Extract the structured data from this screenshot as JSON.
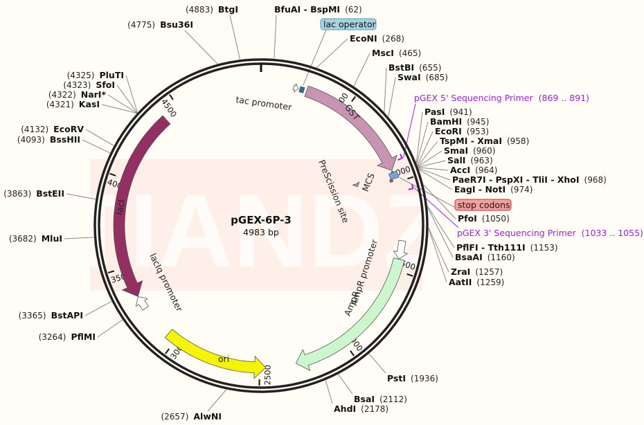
{
  "plasmid": {
    "name": "pGEX-6P-3",
    "length_label": "4983 bp",
    "length": 4983
  },
  "watermark": "TIANDZ",
  "colors": {
    "backbone": "#222222",
    "gst": "#c994b1",
    "mcs": "#6fa8dc",
    "stop": "#e84040",
    "amp": "#ccf7cc",
    "ori": "#f5f500",
    "laci": "#932f61",
    "primer": "#a020e0",
    "lacop": "#2e7087"
  },
  "ticks": [
    500,
    1000,
    1500,
    2000,
    2500,
    3000,
    3500,
    4000,
    4500
  ],
  "features": [
    {
      "name": "tac promoter",
      "start": 183,
      "end": 211,
      "type": "promoter"
    },
    {
      "name": "lac operator",
      "start": 219,
      "end": 243,
      "type": "operator"
    },
    {
      "name": "GST",
      "start": 258,
      "end": 929,
      "type": "cds"
    },
    {
      "name": "PreScission site",
      "start": 918,
      "end": 941,
      "type": "site"
    },
    {
      "name": "MCS",
      "start": 941,
      "end": 977,
      "type": "mcs"
    },
    {
      "name": "stop codons",
      "start": 975,
      "end": 990,
      "type": "stop"
    },
    {
      "name": "AmpR promoter",
      "start": 1330,
      "end": 1434,
      "type": "promoter"
    },
    {
      "name": "AmpR",
      "start": 1435,
      "end": 2295,
      "type": "cds"
    },
    {
      "name": "ori",
      "start": 2466,
      "end": 3054,
      "type": "ori"
    },
    {
      "name": "lacIq promoter",
      "start": 3245,
      "end": 3322,
      "type": "promoter"
    },
    {
      "name": "lacI",
      "start": 3323,
      "end": 4405,
      "type": "cds"
    }
  ],
  "primers": [
    {
      "name": "pGEX 5' Sequencing Primer",
      "range": "(869 .. 891)",
      "start": 869,
      "end": 891
    },
    {
      "name": "pGEX 3' Sequencing Primer",
      "range": "(1033 .. 1055)",
      "start": 1033,
      "end": 1055
    }
  ],
  "enzymes": [
    {
      "name": "BfuAI - BspMI",
      "pos": 62
    },
    {
      "name": "EcoNI",
      "pos": 268
    },
    {
      "name": "MscI",
      "pos": 465
    },
    {
      "name": "BstBI",
      "pos": 655
    },
    {
      "name": "SwaI",
      "pos": 685
    },
    {
      "name": "PasI",
      "pos": 941
    },
    {
      "name": "BamHI",
      "pos": 945
    },
    {
      "name": "EcoRI",
      "pos": 953
    },
    {
      "name": "TspMI - XmaI",
      "pos": 958
    },
    {
      "name": "SmaI",
      "pos": 960
    },
    {
      "name": "SalI",
      "pos": 963
    },
    {
      "name": "AccI",
      "pos": 964
    },
    {
      "name": "PaeR7I - PspXI - TliI - XhoI",
      "pos": 968
    },
    {
      "name": "EagI - NotI",
      "pos": 974
    },
    {
      "name": "PfoI",
      "pos": 1050
    },
    {
      "name": "PflFI - Tth111I",
      "pos": 1153
    },
    {
      "name": "BsaAI",
      "pos": 1160
    },
    {
      "name": "ZraI",
      "pos": 1257
    },
    {
      "name": "AatII",
      "pos": 1259
    },
    {
      "name": "PstI",
      "pos": 1936
    },
    {
      "name": "BsaI",
      "pos": 2112
    },
    {
      "name": "AhdI",
      "pos": 2178
    },
    {
      "name": "AlwNI",
      "pos": 2657
    },
    {
      "name": "PflMI",
      "pos": 3264
    },
    {
      "name": "BstAPI",
      "pos": 3365
    },
    {
      "name": "MluI",
      "pos": 3682
    },
    {
      "name": "BstEII",
      "pos": 3863
    },
    {
      "name": "BssHII",
      "pos": 4093
    },
    {
      "name": "EcoRV",
      "pos": 4132
    },
    {
      "name": "KasI",
      "pos": 4321
    },
    {
      "name": "NarI*",
      "pos": 4322,
      "note": "gray"
    },
    {
      "name": "SfoI",
      "pos": 4323
    },
    {
      "name": "PluTI",
      "pos": 4325
    },
    {
      "name": "Bsu36I",
      "pos": 4775
    },
    {
      "name": "BtgI",
      "pos": 4883
    }
  ]
}
